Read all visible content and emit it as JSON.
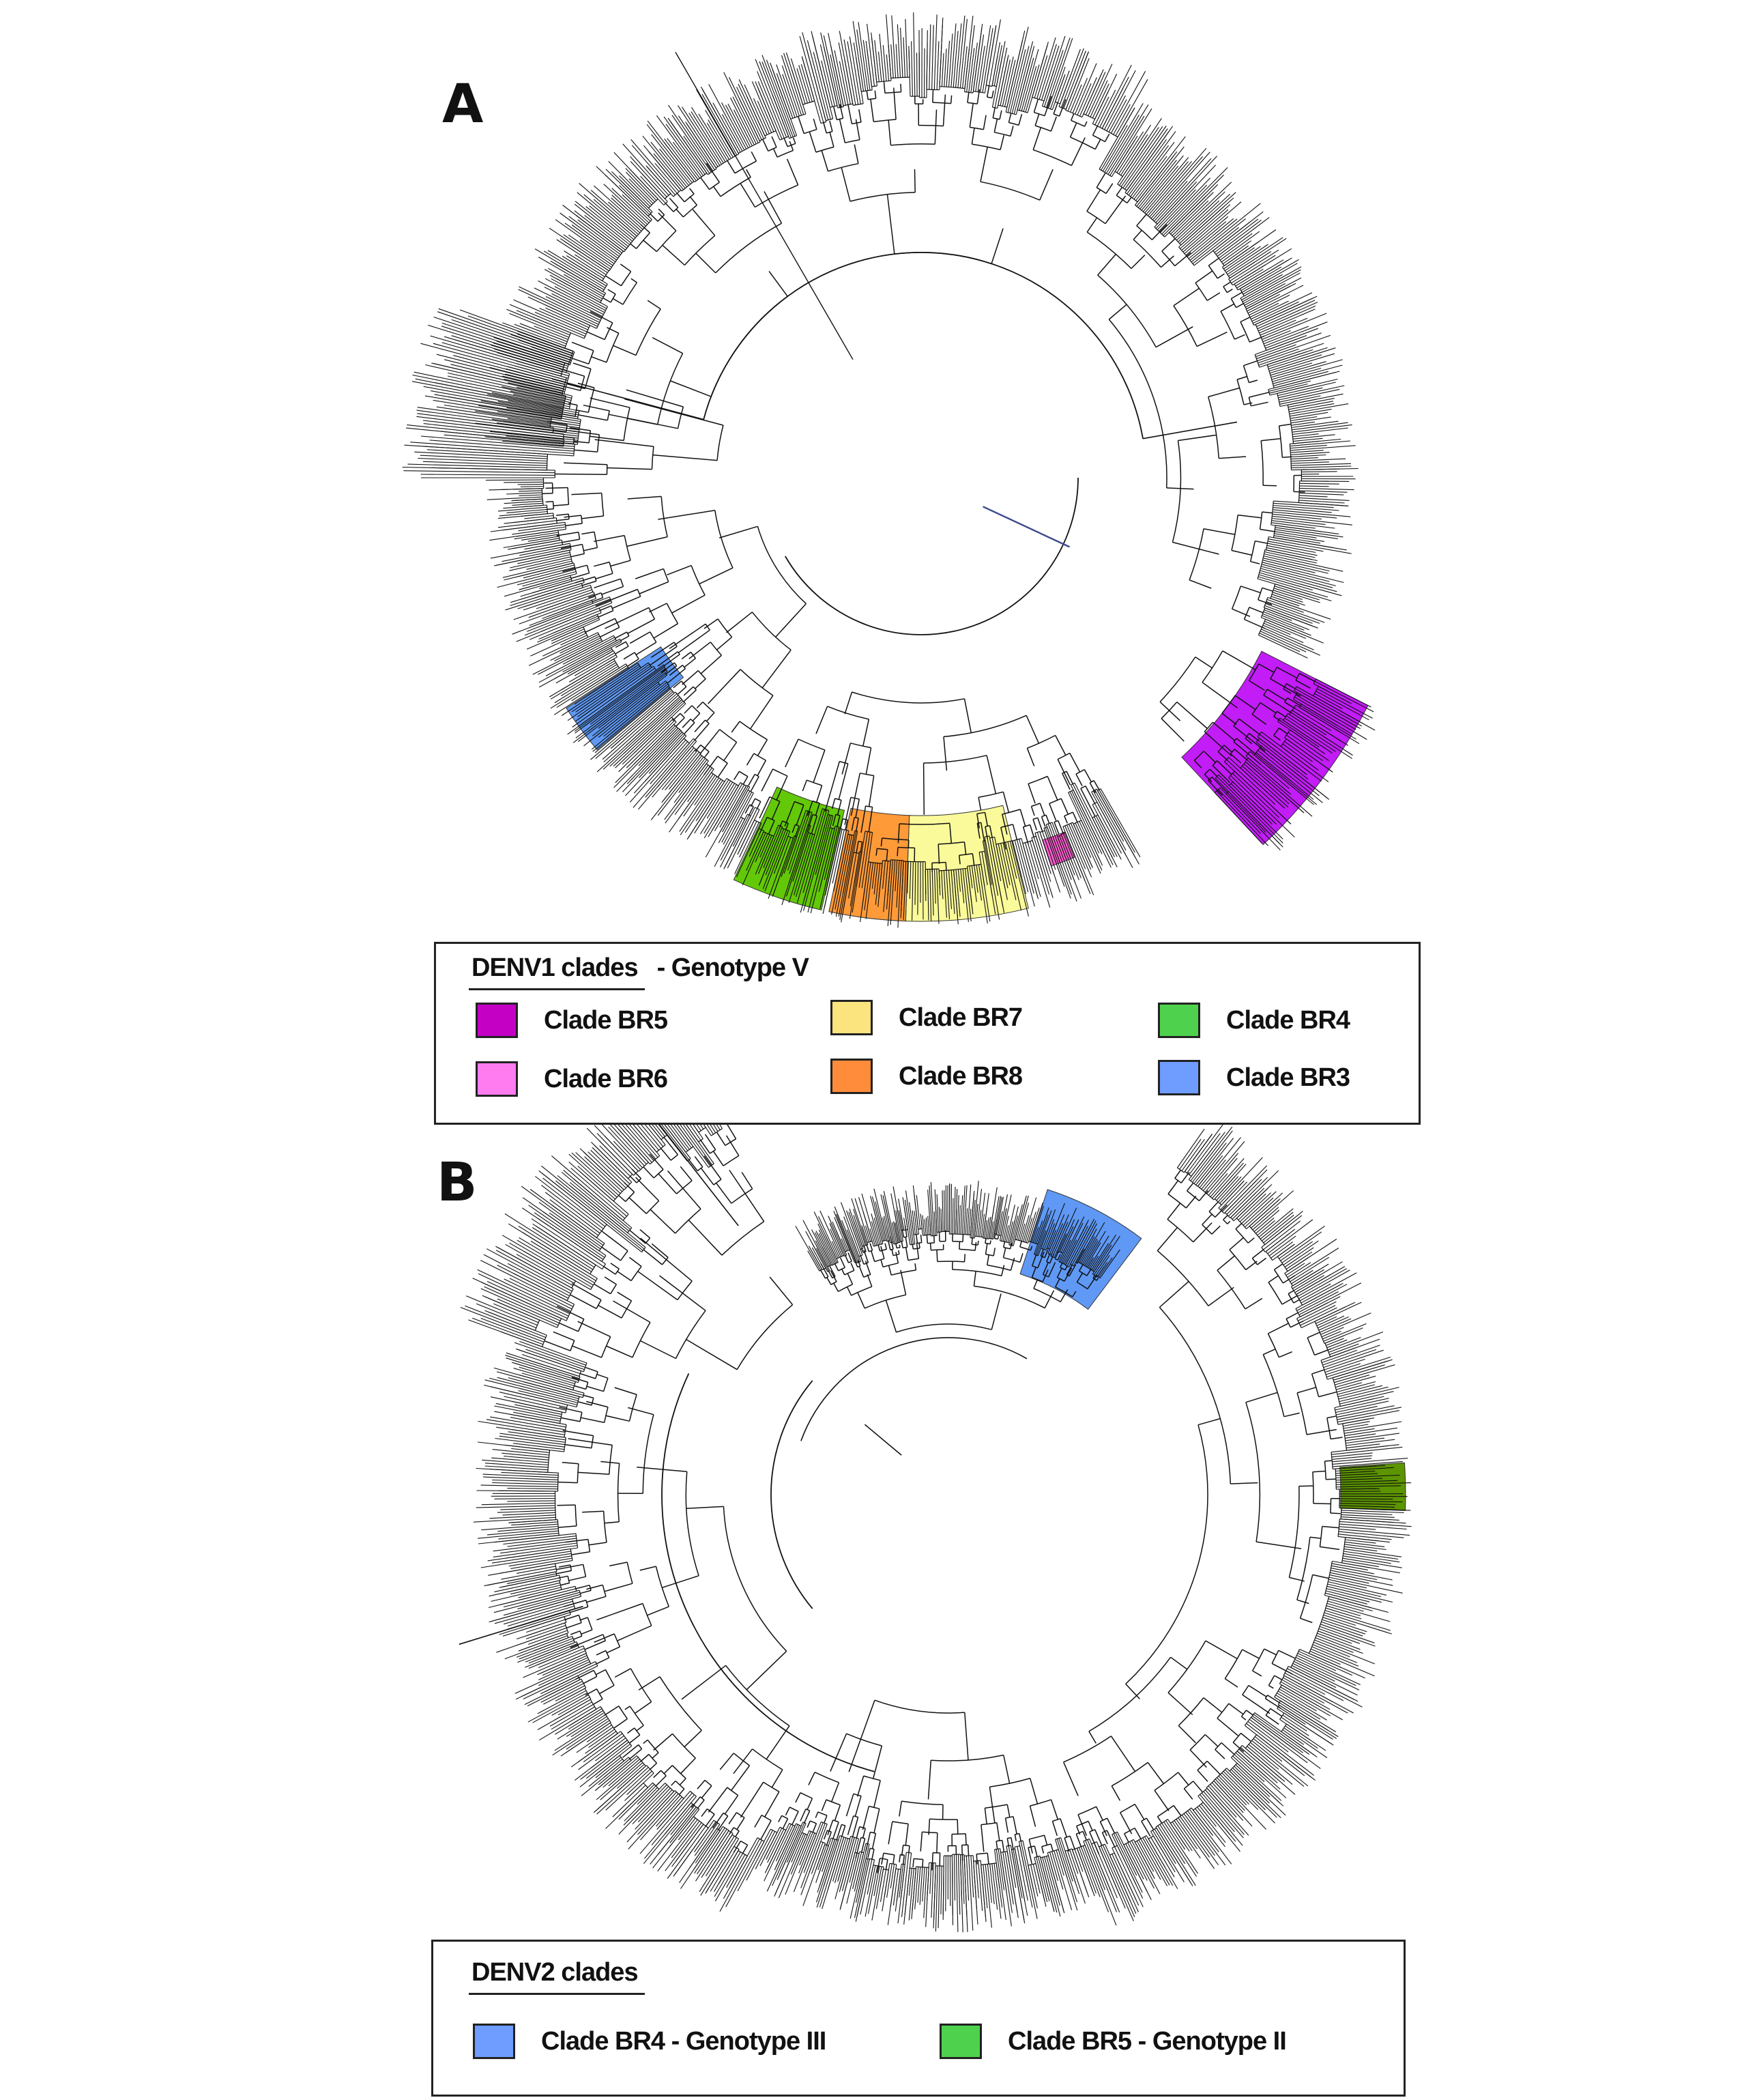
{
  "panels": [
    {
      "letter": "A",
      "legend": {
        "heading": "DENV1 clades",
        "heading_suffix": "- Genotype V",
        "items": [
          {
            "label": "Clade BR5",
            "color": "#c400c4"
          },
          {
            "label": "Clade BR7",
            "color": "#fbe37e"
          },
          {
            "label": "Clade BR4",
            "color": "#4ed24e"
          },
          {
            "label": "Clade BR6",
            "color": "#ff7cf0"
          },
          {
            "label": "Clade BR8",
            "color": "#ff8c3a"
          },
          {
            "label": "Clade BR3",
            "color": "#6e9cff"
          }
        ]
      },
      "highlights": [
        {
          "clade": "Clade BR5",
          "color": "#c21cf7"
        },
        {
          "clade": "Clade BR6",
          "color": "#ff5fd2"
        },
        {
          "clade": "Clade BR7",
          "color": "#fafa9a"
        },
        {
          "clade": "Clade BR8",
          "color": "#ff9a38"
        },
        {
          "clade": "Clade BR4",
          "color": "#63c808"
        },
        {
          "clade": "Clade BR3",
          "color": "#5f99f5"
        }
      ]
    },
    {
      "letter": "B",
      "legend": {
        "heading": "DENV2 clades",
        "heading_suffix": "",
        "items": [
          {
            "label": "Clade BR4 - Genotype III",
            "color": "#6e9cff"
          },
          {
            "label": "Clade BR5 - Genotype II",
            "color": "#4ed24e"
          }
        ]
      },
      "highlights": [
        {
          "clade": "Clade BR4 - Genotype III",
          "color": "#5f99f5"
        },
        {
          "clade": "Clade BR5 - Genotype II",
          "color": "#5c9500"
        }
      ]
    }
  ]
}
